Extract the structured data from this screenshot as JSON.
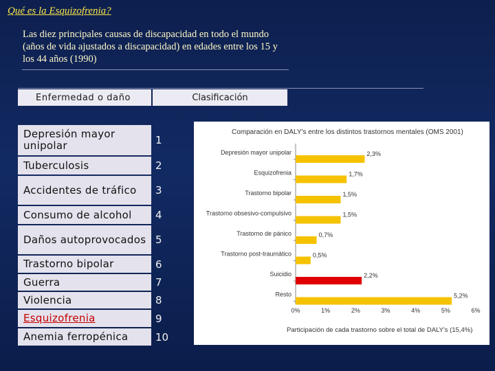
{
  "title": "Qué es la Esquizofrenia?",
  "subtitle": "Las diez principales causas de discapacidad en todo el mundo (años de vida ajustados a discapacidad) en edades entre los 15 y los 44 años (1990)",
  "table": {
    "headers": [
      "Enfermedad o daño",
      "Clasificación"
    ],
    "rows": [
      {
        "disease": "Depresión mayor unipolar",
        "rank": "1"
      },
      {
        "disease": "Tuberculosis",
        "rank": "2"
      },
      {
        "disease": "Accidentes de tráfico",
        "rank": "3"
      },
      {
        "disease": "Consumo de alcohol",
        "rank": "4"
      },
      {
        "disease": "Daños autoprovocados",
        "rank": "5"
      },
      {
        "disease": "Trastorno bipolar",
        "rank": "6"
      },
      {
        "disease": "Guerra",
        "rank": "7"
      },
      {
        "disease": "Violencia",
        "rank": "8"
      },
      {
        "disease": "Esquizofrenia",
        "rank": "9"
      },
      {
        "disease": "Anemia ferropénica",
        "rank": "10"
      }
    ]
  },
  "colors": {
    "bar": "#f5c200",
    "highlight": "#e00000",
    "background": "#0f2258",
    "accent_text": "#ffe94a"
  },
  "chart_data": {
    "type": "bar",
    "orientation": "horizontal",
    "title": "Comparación en DALY's entre los distintos trastornos mentales (OMS 2001)",
    "xlabel": "Participación de cada trastorno sobre el total de DALY's (15,4%)",
    "categories": [
      "Depresión mayor unipolar",
      "Esquizofrenia",
      "Trastorno bipolar",
      "Trastorno obsesivo-compulsivo",
      "Trastorno de pánico",
      "Trastorno post-traumático",
      "Suicidio",
      "Resto"
    ],
    "values": [
      2.3,
      1.7,
      1.5,
      1.5,
      0.7,
      0.5,
      2.2,
      5.2
    ],
    "value_labels": [
      "2,3%",
      "1,7%",
      "1,5%",
      "1,5%",
      "0,7%",
      "0,5%",
      "2,2%",
      "5,2%"
    ],
    "highlight_index": 6,
    "xlim": [
      0,
      6
    ],
    "xticks": [
      "0%",
      "1%",
      "2%",
      "3%",
      "4%",
      "5%",
      "6%"
    ],
    "grid": false,
    "legend": "none"
  }
}
